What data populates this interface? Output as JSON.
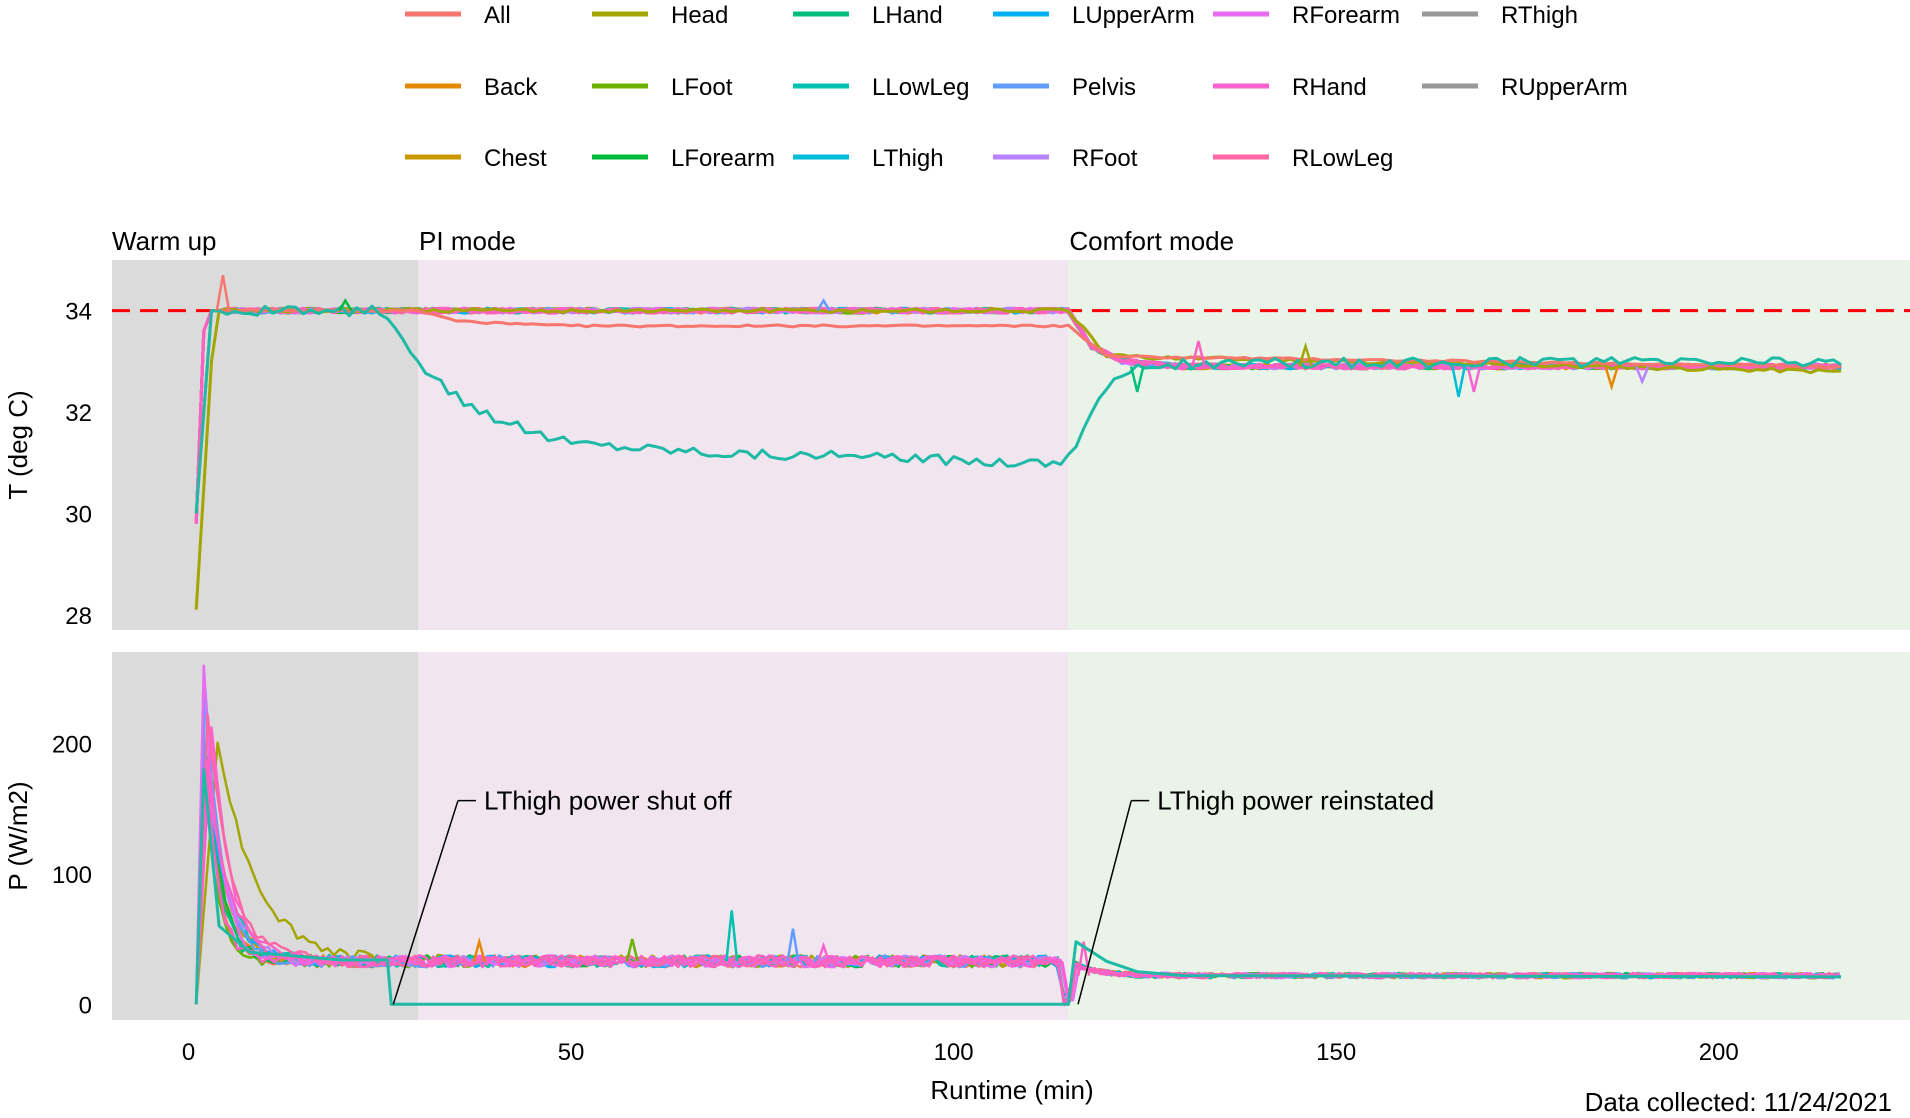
{
  "colors": {
    "All": "#f8766d",
    "Back": "#e58700",
    "Chest": "#c99800",
    "Head": "#a3a500",
    "LFoot": "#6bb100",
    "LForearm": "#00ba38",
    "LHand": "#00bf7d",
    "LLowLeg": "#00c0af",
    "LThigh": "#00bcd8",
    "LUpperArm": "#00b0f6",
    "Pelvis": "#619cff",
    "RFoot": "#b983ff",
    "RForearm": "#e76bf3",
    "RHand": "#fd61d1",
    "RLowLeg": "#ff67a4",
    "setpoint_line": "#ff0000",
    "phase_warmup": "#dbdbdb",
    "phase_pi": "#f1e6f0",
    "phase_comfort": "#e9f3e7"
  },
  "legend": [
    "All",
    "Back",
    "Chest",
    "Head",
    "LFoot",
    "LForearm",
    "LHand",
    "LLowLeg",
    "LThigh",
    "LUpperArm",
    "Pelvis",
    "RFoot",
    "RForearm",
    "RHand",
    "RLowLeg",
    "RThigh",
    "RUpperArm"
  ],
  "chart_data": {
    "type": "line",
    "xlabel": "Runtime (min)",
    "footnote": "Data collected: 11/24/2021",
    "x_range": [
      -10,
      225
    ],
    "x_ticks": [
      0,
      50,
      100,
      150,
      200
    ],
    "phases": [
      {
        "label": "Warm up",
        "start": -10,
        "end": 30
      },
      {
        "label": "PI mode",
        "start": 30,
        "end": 115
      },
      {
        "label": "Comfort mode",
        "start": 115,
        "end": 225
      }
    ],
    "panels": [
      {
        "ylabel": "T (deg C)",
        "y_range": [
          27.7,
          35.0
        ],
        "y_ticks": [
          28,
          30,
          32,
          34
        ],
        "setpoint": 34,
        "series": {
          "Warm": [
            [
              1,
              29.8
            ],
            [
              2,
              33.6
            ],
            [
              3,
              34.0
            ],
            [
              115,
              34.0
            ],
            [
              118,
              33.3
            ],
            [
              122,
              33.0
            ],
            [
              130,
              32.9
            ],
            [
              216,
              32.9
            ]
          ],
          "Head": [
            [
              1,
              28.1
            ],
            [
              2,
              30.5
            ],
            [
              3,
              33.0
            ],
            [
              4,
              34.0
            ],
            [
              115,
              34.0
            ],
            [
              120,
              33.1
            ],
            [
              216,
              32.8
            ]
          ],
          "All": [
            [
              1,
              30.0
            ],
            [
              3,
              34.0
            ],
            [
              30,
              34.0
            ],
            [
              35,
              33.8
            ],
            [
              40,
              33.75
            ],
            [
              50,
              33.7
            ],
            [
              115,
              33.7
            ],
            [
              120,
              33.1
            ],
            [
              216,
              32.9
            ]
          ],
          "LThigh": [
            [
              1,
              30.0
            ],
            [
              3,
              34.0
            ],
            [
              25,
              34.0
            ],
            [
              27,
              33.6
            ],
            [
              30,
              32.9
            ],
            [
              35,
              32.3
            ],
            [
              40,
              31.9
            ],
            [
              45,
              31.6
            ],
            [
              50,
              31.4
            ],
            [
              60,
              31.3
            ],
            [
              70,
              31.2
            ],
            [
              80,
              31.15
            ],
            [
              90,
              31.1
            ],
            [
              100,
              31.05
            ],
            [
              114,
              31.0
            ],
            [
              116,
              31.4
            ],
            [
              118,
              32.0
            ],
            [
              120,
              32.5
            ],
            [
              123,
              32.8
            ],
            [
              126,
              32.95
            ],
            [
              216,
              33.0
            ]
          ]
        },
        "spikes": [
          [
            4.5,
            34.7
          ],
          [
            20.5,
            34.2
          ],
          [
            83,
            34.2
          ],
          [
            132,
            33.4
          ],
          [
            146,
            33.3
          ],
          [
            166,
            32.3
          ],
          [
            168,
            32.4
          ],
          [
            186,
            32.5
          ],
          [
            124,
            32.4
          ],
          [
            190,
            32.6
          ]
        ]
      },
      {
        "ylabel": "P (W/m2)",
        "y_range": [
          -12,
          270
        ],
        "y_ticks": [
          0,
          100,
          200
        ],
        "peaks": [
          {
            "x": 2.0,
            "y": 258,
            "tau": 2.0,
            "series": "RForearm"
          },
          {
            "x": 2.2,
            "y": 240,
            "tau": 2.2,
            "series": "Pelvis"
          },
          {
            "x": 2.5,
            "y": 220,
            "tau": 3.0,
            "series": "RLowLeg"
          },
          {
            "x": 3.0,
            "y": 215,
            "tau": 2.5,
            "series": "RHand"
          },
          {
            "x": 3.8,
            "y": 205,
            "tau": 5.0,
            "series": "Head"
          },
          {
            "x": 2.2,
            "y": 200,
            "tau": 1.8,
            "series": "LHand"
          },
          {
            "x": 2.3,
            "y": 195,
            "tau": 2.4,
            "series": "LUpperArm"
          }
        ],
        "steady_pi": 33,
        "steady_comfort": 22,
        "spikes": [
          [
            38,
            48
          ],
          [
            58,
            50
          ],
          [
            71,
            72
          ],
          [
            79,
            58
          ],
          [
            83,
            45
          ],
          [
            117,
            48
          ]
        ],
        "lthigh": [
          [
            1,
            0
          ],
          [
            2,
            180
          ],
          [
            4,
            60
          ],
          [
            8,
            40
          ],
          [
            20,
            34
          ],
          [
            26,
            34
          ],
          [
            26.5,
            0
          ],
          [
            115,
            0
          ],
          [
            116,
            48
          ],
          [
            120,
            33
          ],
          [
            124,
            25
          ],
          [
            130,
            22
          ],
          [
            216,
            21
          ]
        ],
        "annotations": [
          {
            "text": "LThigh power shut off",
            "x": 26.5,
            "y": 0,
            "tx": 36,
            "ty": 153
          },
          {
            "text": "LThigh power reinstated",
            "x": 116,
            "y": 0,
            "tx": 124,
            "ty": 153
          }
        ]
      }
    ]
  }
}
